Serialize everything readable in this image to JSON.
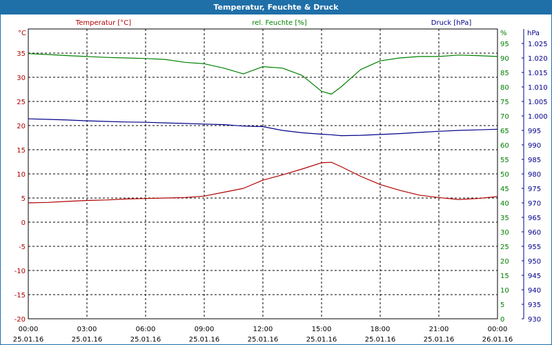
{
  "window": {
    "title": "Temperatur, Feuchte & Druck"
  },
  "colors": {
    "temperature": "#b00000",
    "humidity": "#008000",
    "pressure": "#00008b",
    "grid": "#000000",
    "text": "#000000",
    "titlebar": "#1f6fa8"
  },
  "chart_data": {
    "type": "line",
    "title": "Temperatur, Feuchte & Druck",
    "grid": true,
    "x_ticks": [
      {
        "time": "00:00",
        "date": "25.01.16"
      },
      {
        "time": "03:00",
        "date": "25.01.16"
      },
      {
        "time": "06:00",
        "date": "25.01.16"
      },
      {
        "time": "09:00",
        "date": "25.01.16"
      },
      {
        "time": "12:00",
        "date": "25.01.16"
      },
      {
        "time": "15:00",
        "date": "25.01.16"
      },
      {
        "time": "18:00",
        "date": "25.01.16"
      },
      {
        "time": "21:00",
        "date": "25.01.16"
      },
      {
        "time": "00:00",
        "date": "26.01.16"
      }
    ],
    "x_hours": [
      0,
      1,
      2,
      3,
      4,
      5,
      6,
      7,
      8,
      9,
      10,
      11,
      12,
      13,
      14,
      15,
      15.5,
      16,
      17,
      18,
      19,
      20,
      21,
      22,
      23,
      24
    ],
    "axes": {
      "temperature": {
        "label": "Temperatur [°C]",
        "unit": "°C",
        "side": "left",
        "ylim": [
          -20,
          40
        ],
        "ticks": [
          "-20",
          "-15",
          "-10",
          "-5",
          "0",
          "5",
          "10",
          "15",
          "20",
          "25",
          "30",
          "35"
        ]
      },
      "humidity": {
        "label": "rel. Feuchte [%]",
        "unit": "%",
        "side": "right",
        "ylim": [
          0,
          100
        ],
        "ticks": [
          "0",
          "5",
          "10",
          "15",
          "20",
          "25",
          "30",
          "35",
          "40",
          "45",
          "50",
          "55",
          "60",
          "65",
          "70",
          "75",
          "80",
          "85",
          "90",
          "95"
        ]
      },
      "pressure": {
        "label": "Druck [hPa]",
        "unit": "hPa",
        "side": "right",
        "ylim": [
          930,
          1030
        ],
        "ticks": [
          "930",
          "935",
          "940",
          "945",
          "950",
          "955",
          "960",
          "965",
          "970",
          "975",
          "980",
          "985",
          "990",
          "995",
          "1.000",
          "1.005",
          "1.010",
          "1.015",
          "1.020",
          "1.025"
        ]
      }
    },
    "series": [
      {
        "name": "Temperatur [°C]",
        "axis": "temperature",
        "values": [
          4.0,
          4.1,
          4.3,
          4.5,
          4.6,
          4.8,
          4.9,
          5.0,
          5.1,
          5.4,
          6.2,
          7.0,
          8.7,
          9.8,
          11.0,
          12.3,
          12.4,
          11.5,
          9.5,
          7.8,
          6.6,
          5.6,
          5.1,
          4.7,
          4.9,
          5.3
        ]
      },
      {
        "name": "rel. Feuchte [%]",
        "axis": "humidity",
        "values": [
          91.5,
          91.2,
          90.8,
          90.5,
          90.2,
          90.0,
          89.8,
          89.5,
          88.5,
          88.0,
          86.5,
          84.5,
          87.0,
          86.5,
          84.0,
          78.5,
          77.5,
          80.0,
          86.0,
          89.0,
          90.0,
          90.5,
          90.5,
          91.0,
          90.8,
          90.5
        ]
      },
      {
        "name": "Druck [hPa]",
        "axis": "pressure",
        "values": [
          999.0,
          998.8,
          998.6,
          998.3,
          998.1,
          997.9,
          997.8,
          997.6,
          997.4,
          997.2,
          997.0,
          996.5,
          996.3,
          995.0,
          994.2,
          993.7,
          993.5,
          993.2,
          993.3,
          993.6,
          993.9,
          994.3,
          994.7,
          995.0,
          995.2,
          995.4
        ]
      }
    ]
  }
}
